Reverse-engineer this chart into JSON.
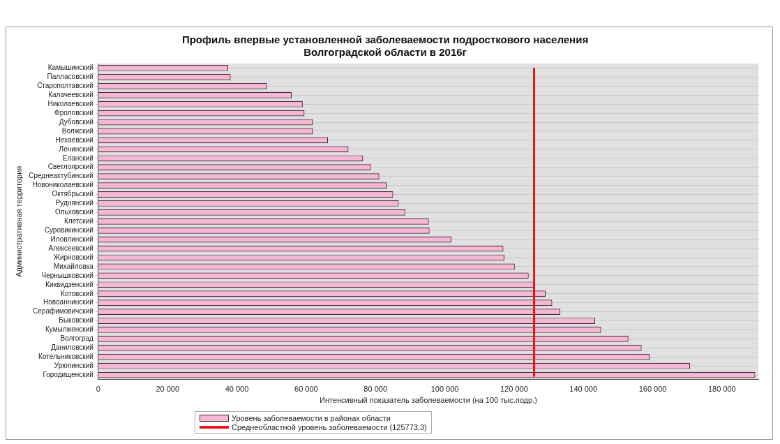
{
  "chart_data": {
    "type": "bar",
    "orientation": "horizontal",
    "title": [
      "Профиль впервые установленной заболеваемости подросткового населения",
      "Волгоградской области в 2016г"
    ],
    "xlabel": "Интенсивный показатель заболеваемости (на 100 тыс.подр.)",
    "ylabel": "Административная территория",
    "categories": [
      "Камышинский",
      "Палласовский",
      "Старополтавский",
      "Калачеевский",
      "Николаевский",
      "Фроловский",
      "Дубовский",
      "Волжский",
      "Нехаевский",
      "Ленинский",
      "Еланский",
      "Светлоярский",
      "Среднеахтубинский",
      "Новониколаевский",
      "Октябрьский",
      "Руднянский",
      "Ольховский",
      "Клетский",
      "Суровикинский",
      "Иловлинский",
      "Алексеевский",
      "Жирновский",
      "Михайловка",
      "Чернышковский",
      "Киквидзенский",
      "Котовский",
      "Новоаннинский",
      "Серафимовичский",
      "Быковский",
      "Кумылженский",
      "Волгоград",
      "Даниловский",
      "Котельниковский",
      "Урюпинский",
      "Городищенский"
    ],
    "series": [
      {
        "name": "Уровень заболеваемости в районах области",
        "color": "#f4b8d4",
        "values": [
          37500,
          38200,
          48700,
          55800,
          59000,
          59500,
          61900,
          61900,
          66300,
          72200,
          76400,
          78700,
          81100,
          83200,
          85100,
          86700,
          88600,
          95400,
          95600,
          101900,
          116900,
          117200,
          120200,
          124200,
          126000,
          129100,
          131000,
          133300,
          143400,
          145100,
          153000,
          156800,
          159100,
          170800,
          189600
        ]
      }
    ],
    "xlim": [
      0,
      190500
    ],
    "xticks": [
      0,
      {
        "value": 20000,
        "label": "20 000"
      },
      {
        "value": 40000,
        "label": "40 000"
      },
      {
        "value": 60000,
        "label": "60 000"
      },
      {
        "value": 80000,
        "label": "80 000"
      },
      {
        "value": 100000,
        "label": "100 000"
      },
      {
        "value": 120000,
        "label": "120 000"
      },
      {
        "value": 140000,
        "label": "140 000"
      },
      {
        "value": 160000,
        "label": "160 000"
      },
      {
        "value": 180000,
        "label": "180 000"
      }
    ],
    "ref_lines": [
      {
        "axis": "x",
        "value": 125773.3,
        "label": "Среднеобластной уровень заболеваемости (125773,3)",
        "color": "#e8141c"
      }
    ],
    "grid": "y",
    "legend": "bottom"
  }
}
